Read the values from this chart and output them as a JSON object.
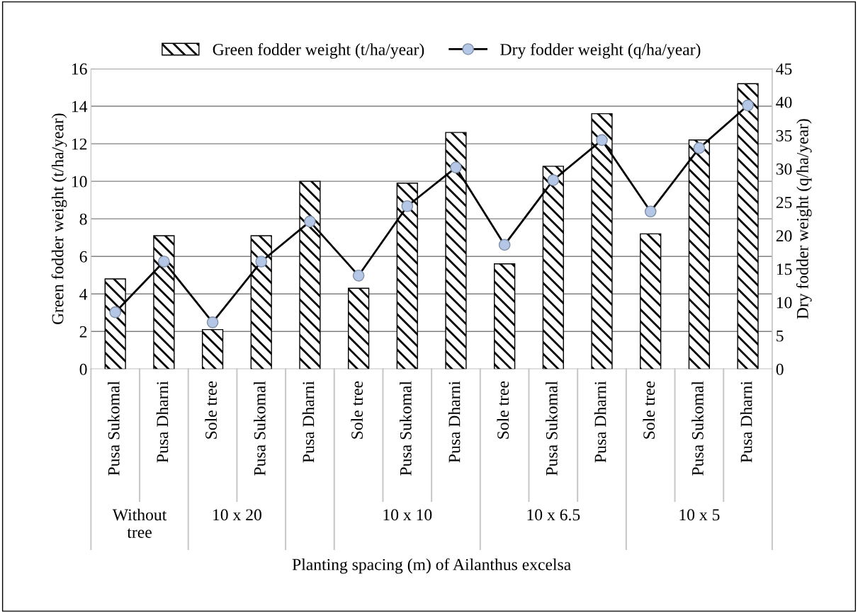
{
  "chart_data": {
    "type": "bar",
    "xlabel": "Planting spacing (m) of Ailanthus excelsa",
    "ylabel": "Green fodder weight (t/ha/year)",
    "y2label": "Dry fodder weight (q/ha/year)",
    "categories": [
      "Pusa Sukomal",
      "Pusa Dharni",
      "Sole tree",
      "Pusa Sukomal",
      "Pusa Dharni",
      "Sole tree",
      "Pusa Sukomal",
      "Pusa Dharni",
      "Sole tree",
      "Pusa Sukomal",
      "Pusa Dharni",
      "Sole tree",
      "Pusa Sukomal",
      "Pusa Dharni"
    ],
    "series": [
      {
        "name": "Green fodder weight (t/ha/year)",
        "color": "#000000",
        "values": [
          4.8,
          7.1,
          2.1,
          7.1,
          10.0,
          4.3,
          9.9,
          12.6,
          5.6,
          10.8,
          13.6,
          7.2,
          12.2,
          15.2
        ]
      },
      {
        "name": "Dry fodder weight (q/ha/year)",
        "type": "line",
        "axis": "y2",
        "color": "#000000",
        "marker": "circle",
        "values": [
          8.5,
          16.1,
          7.0,
          16.1,
          22.1,
          14.0,
          24.4,
          30.2,
          18.6,
          28.3,
          34.3,
          23.6,
          33.1,
          39.5
        ]
      }
    ],
    "annotations": [
      "Without\ntree",
      "10 x 20",
      "10 x 10",
      "10 x 6.5",
      "10 x 5"
    ],
    "ylim": [
      0,
      16
    ],
    "yticks": [
      0,
      2,
      4,
      6,
      8,
      10,
      12,
      14,
      16
    ],
    "y2lim": [
      0,
      45
    ],
    "y2ticks": [
      0,
      5,
      10,
      15,
      20,
      25,
      30,
      35,
      40,
      45
    ],
    "grid": "y",
    "legend": "top"
  }
}
